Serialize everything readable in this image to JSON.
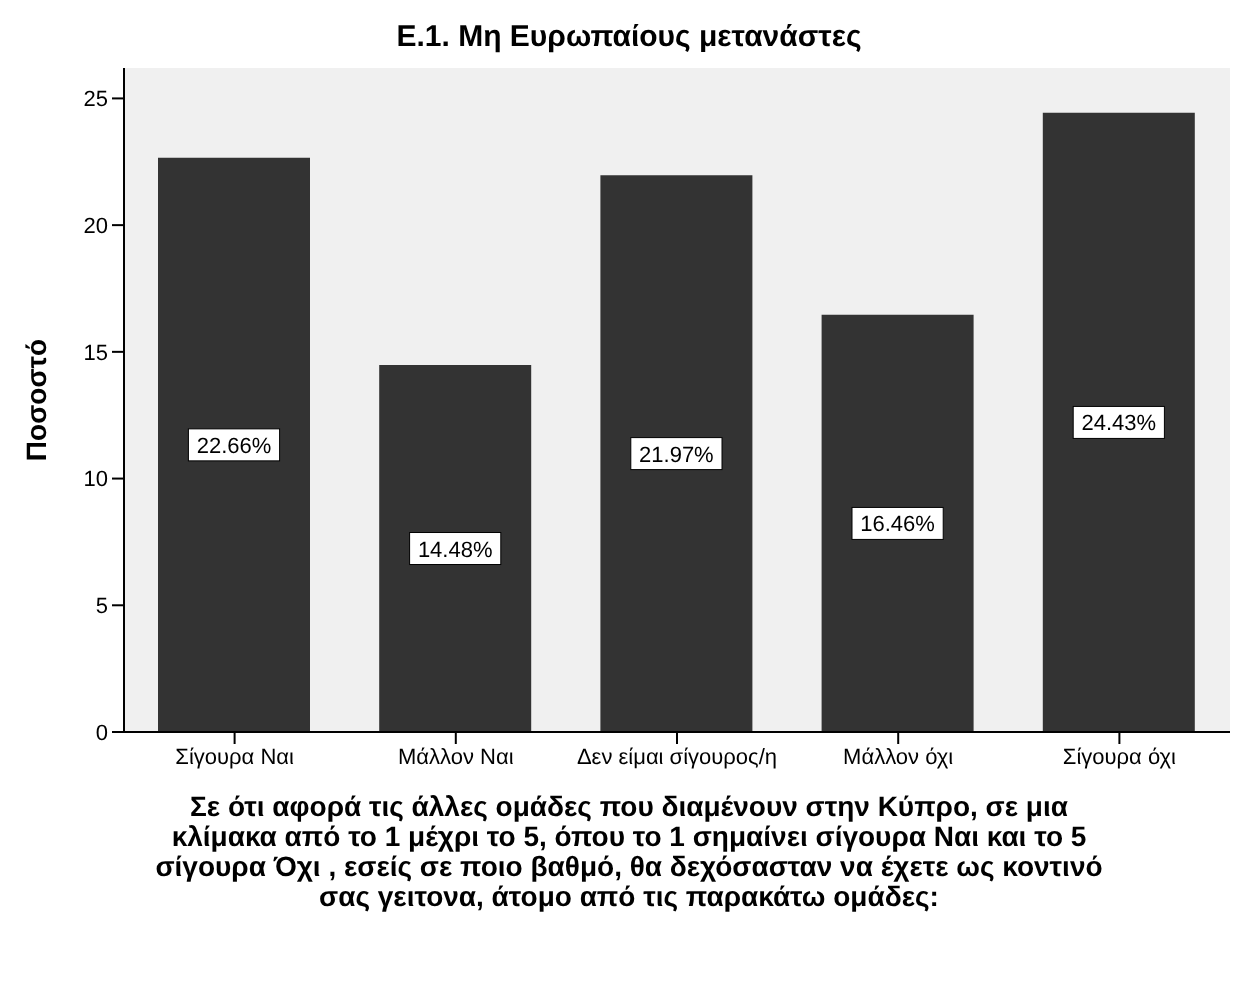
{
  "chart_data": {
    "type": "bar",
    "title": "Ε.1. Μη Ευρωπαίους μετανάστες",
    "xlabel": "Σε ότι αφορά τις άλλες ομάδες που διαμένουν στην Κύπρο, σε μια κλίμακα από το 1 μέχρι το 5, όπου το 1 σημαίνει σίγουρα Ναι και το 5 σίγουρα Όχι , εσείς σε ποιο βαθμό, θα δεχόσασταν να έχετε ως κοντινό σας γειτονα, άτομο από τις παρακάτω ομάδες:",
    "ylabel": "Ποσοστό",
    "categories": [
      "Σίγουρα Ναι",
      "Μάλλον Ναι",
      "Δεν είμαι σίγουρος/η",
      "Μάλλον όχι",
      "Σίγουρα όχι"
    ],
    "values": [
      22.66,
      14.48,
      21.97,
      16.46,
      24.43
    ],
    "value_labels": [
      "22.66%",
      "14.48%",
      "21.97%",
      "16.46%",
      "24.43%"
    ],
    "color": "#333333",
    "ylim": [
      0,
      26.2
    ],
    "yticks": [
      0,
      5,
      10,
      15,
      20,
      25
    ],
    "grid": false
  }
}
